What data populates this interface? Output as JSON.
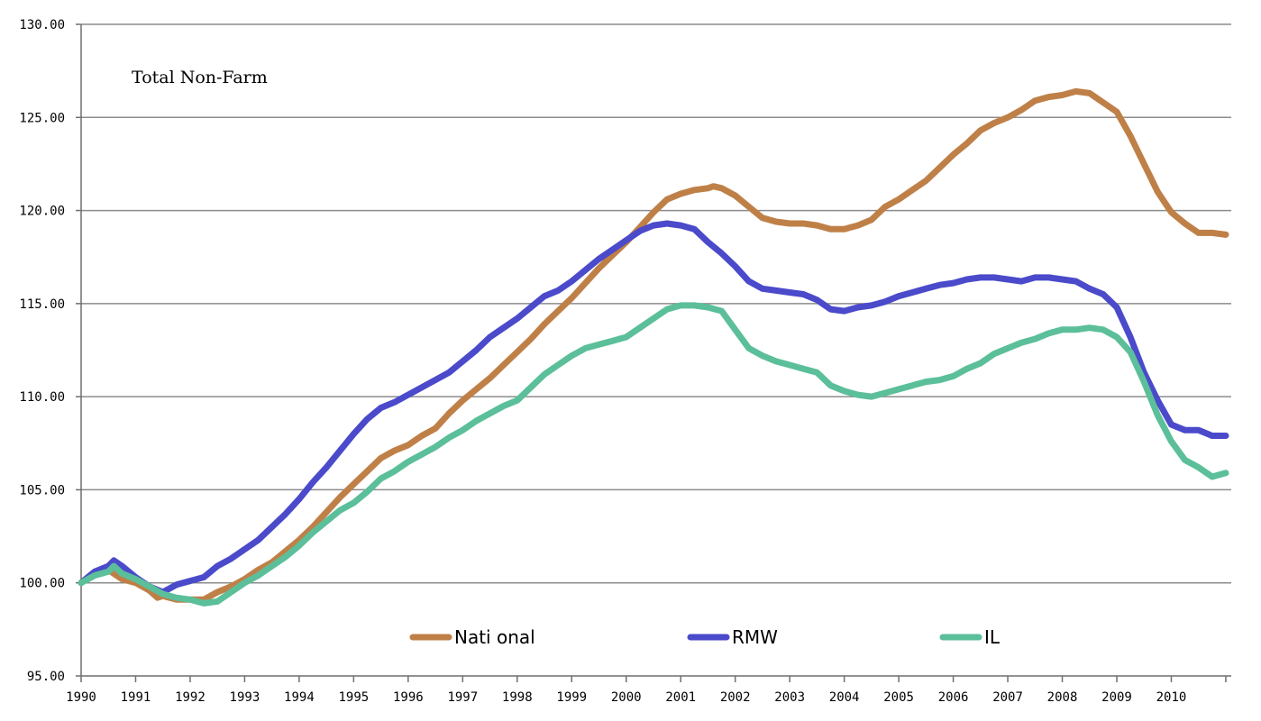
{
  "chart_data": {
    "type": "line",
    "title": "Total Non-Farm",
    "xlabel": "",
    "ylabel": "",
    "xlim": [
      1990,
      2011.1
    ],
    "ylim": [
      95,
      130
    ],
    "y_ticks": [
      "95.00",
      "100.00",
      "105.00",
      "110.00",
      "115.00",
      "120.00",
      "125.00",
      "130.00"
    ],
    "x_ticks": [
      "1990",
      "1991",
      "1992",
      "1993",
      "1994",
      "1995",
      "1996",
      "1997",
      "1998",
      "1999",
      "2000",
      "2001",
      "2002",
      "2003",
      "2004",
      "2005",
      "2006",
      "2007",
      "2008",
      "2009",
      "2010"
    ],
    "grid": "horizontal",
    "legend_position": "bottom",
    "series": [
      {
        "name": "Nati onal",
        "color": "#BF8048",
        "points": [
          [
            1990.0,
            100.0
          ],
          [
            1990.25,
            100.6
          ],
          [
            1990.5,
            100.7
          ],
          [
            1990.75,
            100.2
          ],
          [
            1991.0,
            100.0
          ],
          [
            1991.25,
            99.6
          ],
          [
            1991.4,
            99.2
          ],
          [
            1991.5,
            99.3
          ],
          [
            1991.75,
            99.1
          ],
          [
            1992.0,
            99.1
          ],
          [
            1992.25,
            99.1
          ],
          [
            1992.5,
            99.5
          ],
          [
            1992.75,
            99.8
          ],
          [
            1993.0,
            100.2
          ],
          [
            1993.25,
            100.7
          ],
          [
            1993.5,
            101.1
          ],
          [
            1993.75,
            101.7
          ],
          [
            1994.0,
            102.3
          ],
          [
            1994.25,
            103.0
          ],
          [
            1994.5,
            103.8
          ],
          [
            1994.75,
            104.6
          ],
          [
            1995.0,
            105.3
          ],
          [
            1995.25,
            106.0
          ],
          [
            1995.5,
            106.7
          ],
          [
            1995.75,
            107.1
          ],
          [
            1996.0,
            107.4
          ],
          [
            1996.25,
            107.9
          ],
          [
            1996.5,
            108.3
          ],
          [
            1996.75,
            109.1
          ],
          [
            1997.0,
            109.8
          ],
          [
            1997.25,
            110.4
          ],
          [
            1997.5,
            111.0
          ],
          [
            1997.75,
            111.7
          ],
          [
            1998.0,
            112.4
          ],
          [
            1998.25,
            113.1
          ],
          [
            1998.5,
            113.9
          ],
          [
            1998.75,
            114.6
          ],
          [
            1999.0,
            115.3
          ],
          [
            1999.25,
            116.1
          ],
          [
            1999.5,
            116.9
          ],
          [
            1999.75,
            117.6
          ],
          [
            2000.0,
            118.3
          ],
          [
            2000.25,
            119.1
          ],
          [
            2000.5,
            119.9
          ],
          [
            2000.75,
            120.6
          ],
          [
            2001.0,
            120.9
          ],
          [
            2001.25,
            121.1
          ],
          [
            2001.5,
            121.2
          ],
          [
            2001.6,
            121.3
          ],
          [
            2001.75,
            121.2
          ],
          [
            2002.0,
            120.8
          ],
          [
            2002.25,
            120.2
          ],
          [
            2002.5,
            119.6
          ],
          [
            2002.75,
            119.4
          ],
          [
            2003.0,
            119.3
          ],
          [
            2003.25,
            119.3
          ],
          [
            2003.5,
            119.2
          ],
          [
            2003.75,
            119.0
          ],
          [
            2004.0,
            119.0
          ],
          [
            2004.25,
            119.2
          ],
          [
            2004.5,
            119.5
          ],
          [
            2004.75,
            120.2
          ],
          [
            2005.0,
            120.6
          ],
          [
            2005.25,
            121.1
          ],
          [
            2005.5,
            121.6
          ],
          [
            2005.75,
            122.3
          ],
          [
            2006.0,
            123.0
          ],
          [
            2006.25,
            123.6
          ],
          [
            2006.5,
            124.3
          ],
          [
            2006.75,
            124.7
          ],
          [
            2007.0,
            125.0
          ],
          [
            2007.25,
            125.4
          ],
          [
            2007.5,
            125.9
          ],
          [
            2007.75,
            126.1
          ],
          [
            2008.0,
            126.2
          ],
          [
            2008.25,
            126.4
          ],
          [
            2008.5,
            126.3
          ],
          [
            2008.75,
            125.8
          ],
          [
            2009.0,
            125.3
          ],
          [
            2009.25,
            124.0
          ],
          [
            2009.5,
            122.5
          ],
          [
            2009.75,
            121.0
          ],
          [
            2010.0,
            119.9
          ],
          [
            2010.25,
            119.3
          ],
          [
            2010.5,
            118.8
          ],
          [
            2010.75,
            118.8
          ],
          [
            2011.0,
            118.7
          ]
        ]
      },
      {
        "name": "RMW",
        "color": "#4A4ACB",
        "points": [
          [
            1990.0,
            100.0
          ],
          [
            1990.25,
            100.6
          ],
          [
            1990.5,
            100.9
          ],
          [
            1990.6,
            101.2
          ],
          [
            1990.75,
            100.9
          ],
          [
            1991.0,
            100.3
          ],
          [
            1991.25,
            99.8
          ],
          [
            1991.5,
            99.5
          ],
          [
            1991.75,
            99.9
          ],
          [
            1992.0,
            100.1
          ],
          [
            1992.25,
            100.3
          ],
          [
            1992.5,
            100.9
          ],
          [
            1992.75,
            101.3
          ],
          [
            1993.0,
            101.8
          ],
          [
            1993.25,
            102.3
          ],
          [
            1993.5,
            103.0
          ],
          [
            1993.75,
            103.7
          ],
          [
            1994.0,
            104.5
          ],
          [
            1994.25,
            105.4
          ],
          [
            1994.5,
            106.2
          ],
          [
            1994.75,
            107.1
          ],
          [
            1995.0,
            108.0
          ],
          [
            1995.25,
            108.8
          ],
          [
            1995.5,
            109.4
          ],
          [
            1995.75,
            109.7
          ],
          [
            1996.0,
            110.1
          ],
          [
            1996.25,
            110.5
          ],
          [
            1996.5,
            110.9
          ],
          [
            1996.75,
            111.3
          ],
          [
            1997.0,
            111.9
          ],
          [
            1997.25,
            112.5
          ],
          [
            1997.5,
            113.2
          ],
          [
            1997.75,
            113.7
          ],
          [
            1998.0,
            114.2
          ],
          [
            1998.25,
            114.8
          ],
          [
            1998.5,
            115.4
          ],
          [
            1998.75,
            115.7
          ],
          [
            1999.0,
            116.2
          ],
          [
            1999.25,
            116.8
          ],
          [
            1999.5,
            117.4
          ],
          [
            1999.75,
            117.9
          ],
          [
            2000.0,
            118.4
          ],
          [
            2000.25,
            118.9
          ],
          [
            2000.5,
            119.2
          ],
          [
            2000.75,
            119.3
          ],
          [
            2001.0,
            119.2
          ],
          [
            2001.25,
            119.0
          ],
          [
            2001.5,
            118.3
          ],
          [
            2001.75,
            117.7
          ],
          [
            2002.0,
            117.0
          ],
          [
            2002.25,
            116.2
          ],
          [
            2002.5,
            115.8
          ],
          [
            2002.75,
            115.7
          ],
          [
            2003.0,
            115.6
          ],
          [
            2003.25,
            115.5
          ],
          [
            2003.5,
            115.2
          ],
          [
            2003.75,
            114.7
          ],
          [
            2004.0,
            114.6
          ],
          [
            2004.25,
            114.8
          ],
          [
            2004.5,
            114.9
          ],
          [
            2004.75,
            115.1
          ],
          [
            2005.0,
            115.4
          ],
          [
            2005.25,
            115.6
          ],
          [
            2005.5,
            115.8
          ],
          [
            2005.75,
            116.0
          ],
          [
            2006.0,
            116.1
          ],
          [
            2006.25,
            116.3
          ],
          [
            2006.5,
            116.4
          ],
          [
            2006.75,
            116.4
          ],
          [
            2007.0,
            116.3
          ],
          [
            2007.25,
            116.2
          ],
          [
            2007.5,
            116.4
          ],
          [
            2007.75,
            116.4
          ],
          [
            2008.0,
            116.3
          ],
          [
            2008.25,
            116.2
          ],
          [
            2008.5,
            115.8
          ],
          [
            2008.75,
            115.5
          ],
          [
            2009.0,
            114.8
          ],
          [
            2009.25,
            113.2
          ],
          [
            2009.5,
            111.3
          ],
          [
            2009.75,
            109.8
          ],
          [
            2010.0,
            108.5
          ],
          [
            2010.25,
            108.2
          ],
          [
            2010.5,
            108.2
          ],
          [
            2010.75,
            107.9
          ],
          [
            2011.0,
            107.9
          ]
        ]
      },
      {
        "name": "IL",
        "color": "#5BBF9A",
        "points": [
          [
            1990.0,
            100.0
          ],
          [
            1990.25,
            100.4
          ],
          [
            1990.5,
            100.6
          ],
          [
            1990.6,
            100.9
          ],
          [
            1990.75,
            100.5
          ],
          [
            1991.0,
            100.2
          ],
          [
            1991.25,
            99.8
          ],
          [
            1991.5,
            99.4
          ],
          [
            1991.75,
            99.2
          ],
          [
            1992.0,
            99.1
          ],
          [
            1992.25,
            98.9
          ],
          [
            1992.5,
            99.0
          ],
          [
            1992.75,
            99.5
          ],
          [
            1993.0,
            100.0
          ],
          [
            1993.25,
            100.4
          ],
          [
            1993.5,
            100.9
          ],
          [
            1993.75,
            101.4
          ],
          [
            1994.0,
            102.0
          ],
          [
            1994.25,
            102.7
          ],
          [
            1994.5,
            103.3
          ],
          [
            1994.75,
            103.9
          ],
          [
            1995.0,
            104.3
          ],
          [
            1995.25,
            104.9
          ],
          [
            1995.5,
            105.6
          ],
          [
            1995.75,
            106.0
          ],
          [
            1996.0,
            106.5
          ],
          [
            1996.25,
            106.9
          ],
          [
            1996.5,
            107.3
          ],
          [
            1996.75,
            107.8
          ],
          [
            1997.0,
            108.2
          ],
          [
            1997.25,
            108.7
          ],
          [
            1997.5,
            109.1
          ],
          [
            1997.75,
            109.5
          ],
          [
            1998.0,
            109.8
          ],
          [
            1998.25,
            110.5
          ],
          [
            1998.5,
            111.2
          ],
          [
            1998.75,
            111.7
          ],
          [
            1999.0,
            112.2
          ],
          [
            1999.25,
            112.6
          ],
          [
            1999.5,
            112.8
          ],
          [
            1999.75,
            113.0
          ],
          [
            2000.0,
            113.2
          ],
          [
            2000.25,
            113.7
          ],
          [
            2000.5,
            114.2
          ],
          [
            2000.75,
            114.7
          ],
          [
            2001.0,
            114.9
          ],
          [
            2001.25,
            114.9
          ],
          [
            2001.5,
            114.8
          ],
          [
            2001.75,
            114.6
          ],
          [
            2002.0,
            113.6
          ],
          [
            2002.25,
            112.6
          ],
          [
            2002.5,
            112.2
          ],
          [
            2002.75,
            111.9
          ],
          [
            2003.0,
            111.7
          ],
          [
            2003.25,
            111.5
          ],
          [
            2003.5,
            111.3
          ],
          [
            2003.75,
            110.6
          ],
          [
            2004.0,
            110.3
          ],
          [
            2004.25,
            110.1
          ],
          [
            2004.5,
            110.0
          ],
          [
            2004.75,
            110.2
          ],
          [
            2005.0,
            110.4
          ],
          [
            2005.25,
            110.6
          ],
          [
            2005.5,
            110.8
          ],
          [
            2005.75,
            110.9
          ],
          [
            2006.0,
            111.1
          ],
          [
            2006.25,
            111.5
          ],
          [
            2006.5,
            111.8
          ],
          [
            2006.75,
            112.3
          ],
          [
            2007.0,
            112.6
          ],
          [
            2007.25,
            112.9
          ],
          [
            2007.5,
            113.1
          ],
          [
            2007.75,
            113.4
          ],
          [
            2008.0,
            113.6
          ],
          [
            2008.25,
            113.6
          ],
          [
            2008.5,
            113.7
          ],
          [
            2008.75,
            113.6
          ],
          [
            2009.0,
            113.2
          ],
          [
            2009.25,
            112.4
          ],
          [
            2009.5,
            110.8
          ],
          [
            2009.75,
            109.0
          ],
          [
            2010.0,
            107.6
          ],
          [
            2010.25,
            106.6
          ],
          [
            2010.5,
            106.2
          ],
          [
            2010.75,
            105.7
          ],
          [
            2011.0,
            105.9
          ]
        ]
      }
    ]
  }
}
